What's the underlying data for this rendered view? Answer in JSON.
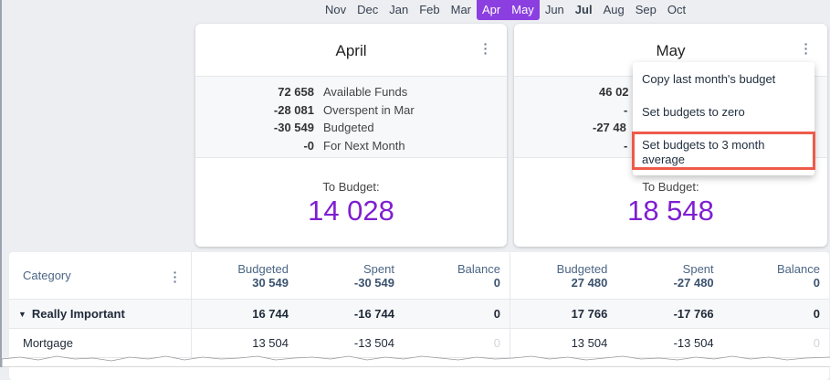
{
  "months": [
    {
      "label": "Nov"
    },
    {
      "label": "Dec"
    },
    {
      "label": "Jan"
    },
    {
      "label": "Feb"
    },
    {
      "label": "Mar"
    },
    {
      "label": "Apr",
      "selected": true
    },
    {
      "label": "May",
      "selected": true
    },
    {
      "label": "Jun"
    },
    {
      "label": "Jul",
      "current": true
    },
    {
      "label": "Aug"
    },
    {
      "label": "Sep"
    },
    {
      "label": "Oct"
    }
  ],
  "april": {
    "title": "April",
    "rows": [
      {
        "value": "72 658",
        "label": "Available Funds"
      },
      {
        "value": "-28 081",
        "label": "Overspent in Mar"
      },
      {
        "value": "-30 549",
        "label": "Budgeted"
      },
      {
        "value": "-0",
        "label": "For Next Month"
      }
    ],
    "to_budget_label": "To Budget:",
    "to_budget": "14 028"
  },
  "may": {
    "title": "May",
    "rows": [
      {
        "value": "46 02"
      },
      {
        "value": "-"
      },
      {
        "value": "-27 48"
      },
      {
        "value": "-"
      }
    ],
    "to_budget_label": "To Budget:",
    "to_budget": "18 548"
  },
  "menu": [
    "Copy last month's budget",
    "Set budgets to zero",
    "Set budgets to 3 month average"
  ],
  "table": {
    "category_header": "Category",
    "april": {
      "budgeted_label": "Budgeted",
      "budgeted": "30 549",
      "spent_label": "Spent",
      "spent": "-30 549",
      "balance_label": "Balance",
      "balance": "0"
    },
    "may": {
      "budgeted_label": "Budgeted",
      "budgeted": "27 480",
      "spent_label": "Spent",
      "spent": "-27 480",
      "balance_label": "Balance",
      "balance": "0"
    },
    "group": {
      "name": "Really Important",
      "april": [
        "16 744",
        "-16 744",
        "0"
      ],
      "may": [
        "17 766",
        "-17 766",
        "0"
      ]
    },
    "rows": [
      {
        "name": "Mortgage",
        "april": [
          "13 504",
          "-13 504",
          "0"
        ],
        "may": [
          "13 504",
          "-13 504",
          "0"
        ]
      }
    ]
  },
  "colors": {
    "accent": "#8b3fe0",
    "to_budget": "#7e1fd1",
    "highlight": "#ee5a4a"
  }
}
